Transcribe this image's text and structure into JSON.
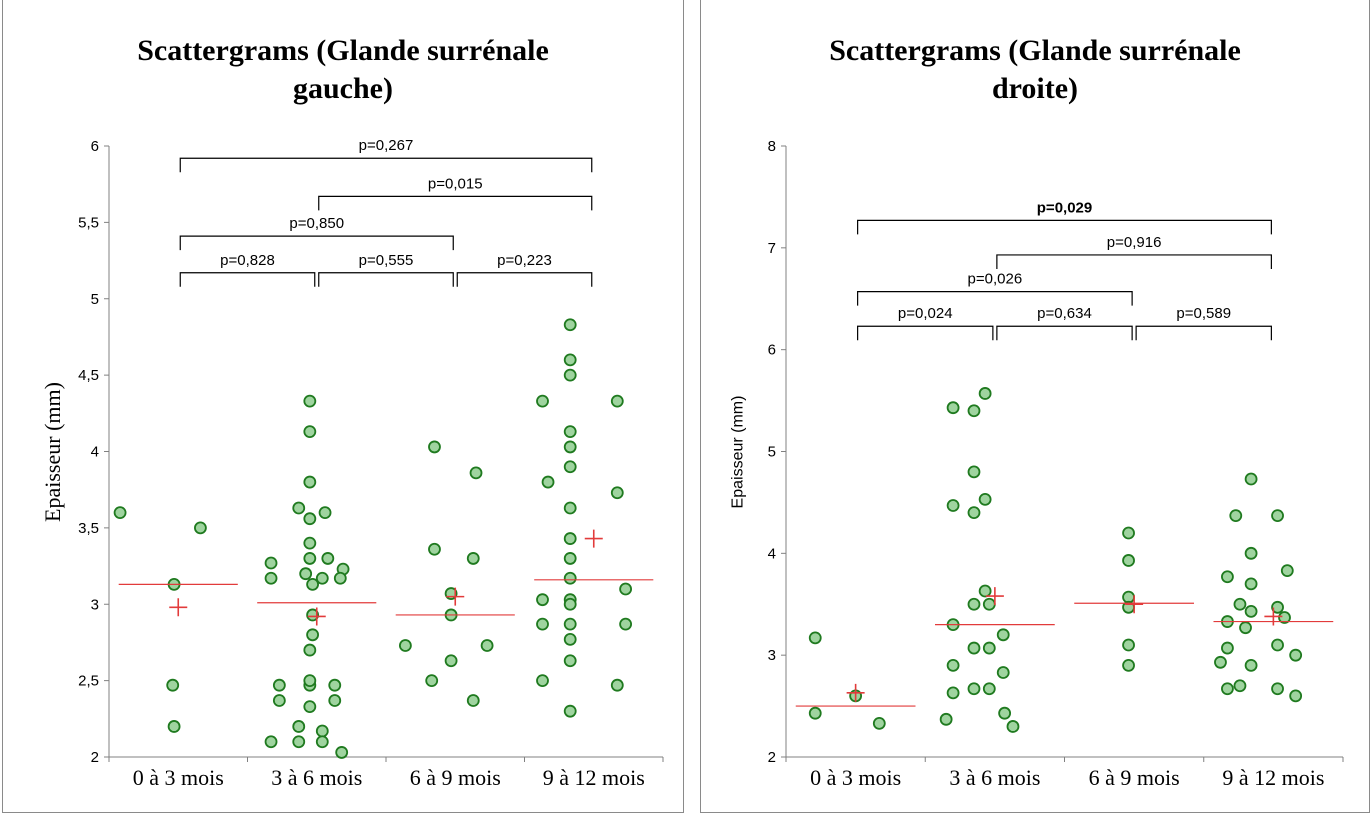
{
  "chart_data": [
    {
      "type": "scatter",
      "title_line1": "Scattergrams (Glande surrénale",
      "title_line2": "gauche)",
      "xlabel": "",
      "ylabel": "Epaisseur (mm)",
      "categories": [
        "0 à 3 mois",
        "3 à 6 mois",
        "6 à 9 mois",
        "9 à 12 mois"
      ],
      "ylim": [
        2,
        6
      ],
      "yticks": [
        "2",
        "2,5",
        "3",
        "3,5",
        "4",
        "4,5",
        "5",
        "5,5",
        "6"
      ],
      "points": [
        [
          [
            -0.42,
            3.6
          ],
          [
            0.16,
            3.5
          ],
          [
            -0.03,
            3.13
          ],
          [
            -0.04,
            2.47
          ],
          [
            -0.03,
            2.2
          ]
        ],
        [
          [
            -0.05,
            4.33
          ],
          [
            -0.05,
            4.13
          ],
          [
            -0.05,
            3.8
          ],
          [
            -0.13,
            3.63
          ],
          [
            -0.05,
            3.56
          ],
          [
            0.06,
            3.6
          ],
          [
            -0.05,
            3.4
          ],
          [
            -0.33,
            3.27
          ],
          [
            -0.05,
            3.3
          ],
          [
            0.08,
            3.3
          ],
          [
            0.19,
            3.23
          ],
          [
            -0.33,
            3.17
          ],
          [
            -0.08,
            3.2
          ],
          [
            0.04,
            3.17
          ],
          [
            0.17,
            3.17
          ],
          [
            -0.03,
            3.13
          ],
          [
            -0.03,
            2.93
          ],
          [
            -0.03,
            2.8
          ],
          [
            -0.05,
            2.7
          ],
          [
            -0.27,
            2.47
          ],
          [
            -0.05,
            2.47
          ],
          [
            0.13,
            2.47
          ],
          [
            -0.05,
            2.5
          ],
          [
            -0.27,
            2.37
          ],
          [
            -0.05,
            2.33
          ],
          [
            0.13,
            2.37
          ],
          [
            -0.13,
            2.2
          ],
          [
            0.04,
            2.17
          ],
          [
            -0.33,
            2.1
          ],
          [
            -0.13,
            2.1
          ],
          [
            0.04,
            2.1
          ],
          [
            0.18,
            2.03
          ]
        ],
        [
          [
            -0.15,
            4.03
          ],
          [
            0.15,
            3.86
          ],
          [
            -0.15,
            3.36
          ],
          [
            0.13,
            3.3
          ],
          [
            -0.03,
            3.07
          ],
          [
            -0.03,
            2.93
          ],
          [
            -0.36,
            2.73
          ],
          [
            0.23,
            2.73
          ],
          [
            -0.03,
            2.63
          ],
          [
            -0.17,
            2.5
          ],
          [
            0.13,
            2.37
          ]
        ],
        [
          [
            -0.17,
            4.83
          ],
          [
            -0.17,
            4.6
          ],
          [
            -0.17,
            4.5
          ],
          [
            -0.37,
            4.33
          ],
          [
            0.17,
            4.33
          ],
          [
            -0.17,
            4.13
          ],
          [
            -0.17,
            4.03
          ],
          [
            -0.17,
            3.9
          ],
          [
            -0.33,
            3.8
          ],
          [
            0.17,
            3.73
          ],
          [
            -0.17,
            3.63
          ],
          [
            -0.17,
            3.43
          ],
          [
            -0.17,
            3.3
          ],
          [
            -0.17,
            3.17
          ],
          [
            0.23,
            3.1
          ],
          [
            -0.37,
            3.03
          ],
          [
            -0.17,
            3.03
          ],
          [
            -0.17,
            3.0
          ],
          [
            -0.37,
            2.87
          ],
          [
            -0.17,
            2.87
          ],
          [
            0.23,
            2.87
          ],
          [
            -0.17,
            2.77
          ],
          [
            -0.17,
            2.63
          ],
          [
            -0.37,
            2.5
          ],
          [
            0.17,
            2.47
          ],
          [
            -0.17,
            2.3
          ]
        ]
      ],
      "means": [
        3.13,
        3.01,
        2.93,
        3.16
      ],
      "plus_markers": [
        2.98,
        2.92,
        3.05,
        3.43
      ],
      "brackets": [
        {
          "from": 0,
          "to": 3,
          "y": 5.92,
          "label": "p=0,267",
          "bold": false
        },
        {
          "from": 1,
          "to": 3,
          "y": 5.67,
          "label": "p=0,015",
          "bold": false
        },
        {
          "from": 0,
          "to": 2,
          "y": 5.41,
          "label": "p=0,850",
          "bold": false
        },
        {
          "from": 0,
          "to": 1,
          "y": 5.17,
          "label": "p=0,828",
          "bold": false
        },
        {
          "from": 1,
          "to": 2,
          "y": 5.17,
          "label": "p=0,555",
          "bold": false
        },
        {
          "from": 2,
          "to": 3,
          "y": 5.17,
          "label": "p=0,223",
          "bold": false
        }
      ]
    },
    {
      "type": "scatter",
      "title_line1": "Scattergrams (Glande surrénale",
      "title_line2": "droite)",
      "xlabel": "",
      "ylabel": "Epaisseur (mm)",
      "categories": [
        "0 à 3 mois",
        "3 à 6 mois",
        "6 à 9 mois",
        "9 à 12 mois"
      ],
      "ylim": [
        2,
        8
      ],
      "yticks": [
        "2",
        "3",
        "4",
        "5",
        "6",
        "7",
        "8"
      ],
      "points": [
        [
          [
            -0.29,
            3.17
          ],
          [
            0.0,
            2.6
          ],
          [
            -0.29,
            2.43
          ],
          [
            0.17,
            2.33
          ]
        ],
        [
          [
            -0.35,
            2.37
          ],
          [
            -0.3,
            5.43
          ],
          [
            -0.3,
            4.47
          ],
          [
            -0.3,
            3.3
          ],
          [
            -0.3,
            2.9
          ],
          [
            -0.3,
            2.63
          ],
          [
            -0.15,
            5.4
          ],
          [
            -0.15,
            4.8
          ],
          [
            -0.15,
            4.4
          ],
          [
            -0.15,
            3.5
          ],
          [
            -0.15,
            3.07
          ],
          [
            -0.15,
            2.67
          ],
          [
            -0.07,
            5.57
          ],
          [
            -0.07,
            4.53
          ],
          [
            -0.07,
            3.63
          ],
          [
            -0.04,
            3.5
          ],
          [
            -0.04,
            3.07
          ],
          [
            -0.04,
            2.67
          ],
          [
            0.06,
            3.2
          ],
          [
            0.06,
            2.83
          ],
          [
            0.07,
            2.43
          ],
          [
            0.13,
            2.3
          ]
        ],
        [
          [
            -0.04,
            4.2
          ],
          [
            -0.04,
            3.93
          ],
          [
            -0.04,
            3.57
          ],
          [
            -0.04,
            3.47
          ],
          [
            -0.04,
            3.1
          ],
          [
            -0.04,
            2.9
          ]
        ],
        [
          [
            -0.16,
            4.73
          ],
          [
            -0.27,
            4.37
          ],
          [
            0.03,
            4.37
          ],
          [
            -0.16,
            4.0
          ],
          [
            0.1,
            3.83
          ],
          [
            -0.33,
            3.77
          ],
          [
            -0.16,
            3.7
          ],
          [
            -0.24,
            3.5
          ],
          [
            0.03,
            3.47
          ],
          [
            -0.16,
            3.43
          ],
          [
            -0.33,
            3.33
          ],
          [
            0.08,
            3.37
          ],
          [
            -0.2,
            3.27
          ],
          [
            -0.38,
            2.93
          ],
          [
            -0.16,
            2.9
          ],
          [
            0.03,
            3.1
          ],
          [
            0.16,
            3.0
          ],
          [
            -0.33,
            3.07
          ],
          [
            -0.33,
            2.67
          ],
          [
            -0.24,
            2.7
          ],
          [
            0.03,
            2.67
          ],
          [
            0.16,
            2.6
          ]
        ]
      ],
      "means": [
        2.5,
        3.3,
        3.51,
        3.33
      ],
      "plus_markers": [
        2.63,
        3.58,
        3.5,
        3.38
      ],
      "brackets": [
        {
          "from": 0,
          "to": 3,
          "y": 7.27,
          "label": "p=0,029",
          "bold": true
        },
        {
          "from": 1,
          "to": 3,
          "y": 6.93,
          "label": "p=0,916",
          "bold": false
        },
        {
          "from": 0,
          "to": 2,
          "y": 6.57,
          "label": "p=0,026",
          "bold": false
        },
        {
          "from": 0,
          "to": 1,
          "y": 6.23,
          "label": "p=0,024",
          "bold": false
        },
        {
          "from": 1,
          "to": 2,
          "y": 6.23,
          "label": "p=0,634",
          "bold": false
        },
        {
          "from": 2,
          "to": 3,
          "y": 6.23,
          "label": "p=0,589",
          "bold": false
        }
      ]
    }
  ],
  "colors": {
    "point_fill": "#9fd49f",
    "point_stroke": "#1f7a1f",
    "mean_line": "#e23b3b",
    "plus_marker": "#e23b3b",
    "axis": "#808080",
    "bracket": "#000000"
  }
}
